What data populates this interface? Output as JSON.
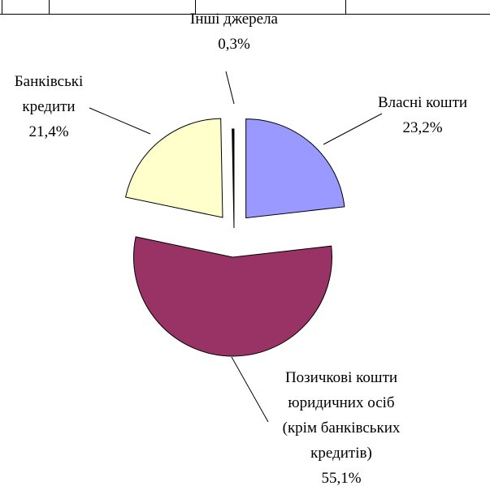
{
  "chart_data": {
    "type": "pie",
    "categories": [
      "Власні кошти",
      "Позичкові кошти\nюридичних осіб\n(крім банківських\nкредитів)",
      "Банківські\nкредити",
      "Інші джерела"
    ],
    "values": [
      23.2,
      55.1,
      21.4,
      0.3
    ],
    "value_labels": [
      "23,2%",
      "55,1%",
      "21,4%",
      "0,3%"
    ],
    "colors": [
      "#9999ff",
      "#993366",
      "#ffffcc",
      "#000000"
    ]
  }
}
